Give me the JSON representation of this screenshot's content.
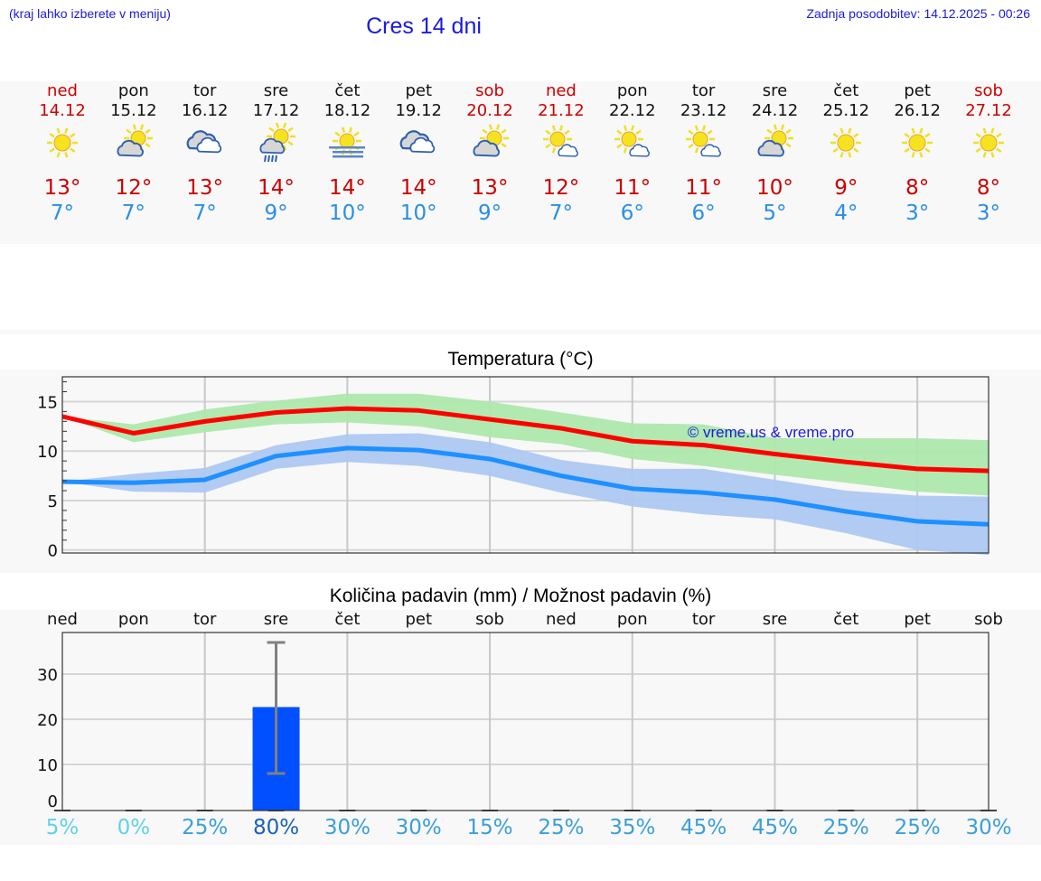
{
  "header": {
    "hint": "(kraj lahko izberete v meniju)",
    "title": "Cres 14 dni",
    "updated": "Zadnja posodobitev: 14.12.2025 - 00:26"
  },
  "days": [
    {
      "name": "ned",
      "date": "14.12",
      "weekend": true,
      "icon": "sun-icon",
      "tmax": "13°",
      "tmin": "7°"
    },
    {
      "name": "pon",
      "date": "15.12",
      "weekend": false,
      "icon": "sun-behind-cloud-icon",
      "tmax": "12°",
      "tmin": "7°"
    },
    {
      "name": "tor",
      "date": "16.12",
      "weekend": false,
      "icon": "cloudy-icon",
      "tmax": "13°",
      "tmin": "7°"
    },
    {
      "name": "sre",
      "date": "17.12",
      "weekend": false,
      "icon": "sun-cloud-rain-icon",
      "tmax": "14°",
      "tmin": "9°"
    },
    {
      "name": "čet",
      "date": "18.12",
      "weekend": false,
      "icon": "sun-fog-icon",
      "tmax": "14°",
      "tmin": "10°"
    },
    {
      "name": "pet",
      "date": "19.12",
      "weekend": false,
      "icon": "cloudy-icon",
      "tmax": "14°",
      "tmin": "10°"
    },
    {
      "name": "sob",
      "date": "20.12",
      "weekend": true,
      "icon": "sun-behind-cloud-icon",
      "tmax": "13°",
      "tmin": "9°"
    },
    {
      "name": "ned",
      "date": "21.12",
      "weekend": true,
      "icon": "sun-small-cloud-icon",
      "tmax": "12°",
      "tmin": "7°"
    },
    {
      "name": "pon",
      "date": "22.12",
      "weekend": false,
      "icon": "sun-small-cloud-icon",
      "tmax": "11°",
      "tmin": "6°"
    },
    {
      "name": "tor",
      "date": "23.12",
      "weekend": false,
      "icon": "sun-small-cloud-icon",
      "tmax": "11°",
      "tmin": "6°"
    },
    {
      "name": "sre",
      "date": "24.12",
      "weekend": false,
      "icon": "sun-behind-cloud-icon",
      "tmax": "10°",
      "tmin": "5°"
    },
    {
      "name": "čet",
      "date": "25.12",
      "weekend": false,
      "icon": "sun-icon",
      "tmax": "9°",
      "tmin": "4°"
    },
    {
      "name": "pet",
      "date": "26.12",
      "weekend": false,
      "icon": "sun-icon",
      "tmax": "8°",
      "tmin": "3°"
    },
    {
      "name": "sob",
      "date": "27.12",
      "weekend": true,
      "icon": "sun-icon",
      "tmax": "8°",
      "tmin": "3°"
    }
  ],
  "colors": {
    "weekend": "#cc0000",
    "tmax": "#cc0000",
    "tmin": "#2a8ee6",
    "max_line": "#ff0000",
    "min_line": "#1e90ff",
    "max_band": "#ade8ad",
    "min_band": "#adc8f2",
    "precip_bar": "#0050ff",
    "error_bar": "#808080",
    "watermark": "#1a1adc",
    "link": "#1a1adc"
  },
  "temperature_chart": {
    "title": "Temperatura (°C)",
    "watermark": "© vreme.us & vreme.pro",
    "yticks": [
      "0",
      "5",
      "10",
      "15"
    ]
  },
  "precip_chart": {
    "title": "Količina padavin (mm) / Možnost padavin (%)",
    "yticks": [
      "0",
      "10",
      "20",
      "30"
    ],
    "day_labels": [
      "ned",
      "pon",
      "tor",
      "sre",
      "čet",
      "pet",
      "sob",
      "ned",
      "pon",
      "tor",
      "sre",
      "čet",
      "pet",
      "sob"
    ],
    "chances": [
      {
        "text": "5%",
        "color": "#5fd2e8"
      },
      {
        "text": "0%",
        "color": "#5fd2e8"
      },
      {
        "text": "25%",
        "color": "#3a9fd8"
      },
      {
        "text": "80%",
        "color": "#1a62b8"
      },
      {
        "text": "30%",
        "color": "#3a9fd8"
      },
      {
        "text": "30%",
        "color": "#3a9fd8"
      },
      {
        "text": "15%",
        "color": "#3a9fd8"
      },
      {
        "text": "25%",
        "color": "#3a9fd8"
      },
      {
        "text": "35%",
        "color": "#3a9fd8"
      },
      {
        "text": "45%",
        "color": "#3a9fd8"
      },
      {
        "text": "45%",
        "color": "#3a9fd8"
      },
      {
        "text": "25%",
        "color": "#3a9fd8"
      },
      {
        "text": "25%",
        "color": "#3a9fd8"
      },
      {
        "text": "30%",
        "color": "#3a9fd8"
      }
    ]
  },
  "chart_data": [
    {
      "type": "line",
      "title": "Temperatura (°C)",
      "xlabel": "",
      "ylabel": "°C",
      "ylim": [
        -0.5,
        17.5
      ],
      "grid": true,
      "categories": [
        "14.12",
        "15.12",
        "16.12",
        "17.12",
        "18.12",
        "19.12",
        "20.12",
        "21.12",
        "22.12",
        "23.12",
        "24.12",
        "25.12",
        "26.12",
        "27.12"
      ],
      "series": [
        {
          "name": "Tmax",
          "color": "#ff0000",
          "values": [
            13.5,
            11.8,
            13.0,
            13.9,
            14.3,
            14.1,
            13.2,
            12.3,
            11.0,
            10.6,
            9.7,
            8.9,
            8.2,
            8.0
          ]
        },
        {
          "name": "Tmax band upper",
          "values": [
            13.5,
            12.7,
            14.2,
            15.1,
            15.8,
            15.8,
            15.0,
            13.9,
            12.8,
            12.7,
            11.3,
            11.3,
            11.3,
            11.1
          ]
        },
        {
          "name": "Tmax band lower",
          "values": [
            13.5,
            10.9,
            11.9,
            12.7,
            12.9,
            12.5,
            11.4,
            10.7,
            9.2,
            8.5,
            7.6,
            6.8,
            5.9,
            5.5
          ]
        },
        {
          "name": "Tmin",
          "color": "#1e90ff",
          "values": [
            6.9,
            6.8,
            7.1,
            9.5,
            10.3,
            10.1,
            9.2,
            7.5,
            6.2,
            5.8,
            5.1,
            3.9,
            2.9,
            2.6
          ]
        },
        {
          "name": "Tmin band upper",
          "values": [
            6.9,
            7.7,
            8.3,
            10.6,
            11.7,
            11.8,
            10.9,
            9.1,
            8.2,
            8.2,
            7.1,
            6.0,
            5.5,
            5.4
          ]
        },
        {
          "name": "Tmin band lower",
          "values": [
            6.9,
            5.9,
            5.8,
            8.2,
            8.9,
            8.5,
            7.5,
            5.8,
            4.4,
            3.6,
            3.1,
            1.7,
            0.0,
            -0.5
          ]
        }
      ],
      "annotations": [
        "© vreme.us & vreme.pro"
      ]
    },
    {
      "type": "bar",
      "title": "Količina padavin (mm) / Možnost padavin (%)",
      "xlabel": "",
      "ylabel": "mm",
      "ylim": [
        0,
        39
      ],
      "grid": true,
      "categories": [
        "ned",
        "pon",
        "tor",
        "sre",
        "čet",
        "pet",
        "sob",
        "ned",
        "pon",
        "tor",
        "sre",
        "čet",
        "pet",
        "sob"
      ],
      "series": [
        {
          "name": "Količina padavin (mm)",
          "color": "#0050ff",
          "values": [
            0,
            0,
            0,
            22.7,
            0,
            0,
            0,
            0,
            0,
            0,
            0,
            0,
            0,
            0
          ]
        },
        {
          "name": "Error max (mm)",
          "values": [
            0,
            0,
            0,
            37,
            0,
            0,
            0,
            0,
            0,
            0,
            0,
            0,
            0,
            0
          ]
        },
        {
          "name": "Error min (mm)",
          "values": [
            0,
            0,
            0,
            8,
            0,
            0,
            0,
            0,
            0,
            0,
            0,
            0,
            0,
            0
          ]
        },
        {
          "name": "Možnost padavin (%)",
          "values": [
            5,
            0,
            25,
            80,
            30,
            30,
            15,
            25,
            35,
            45,
            45,
            25,
            25,
            30
          ]
        }
      ]
    }
  ]
}
